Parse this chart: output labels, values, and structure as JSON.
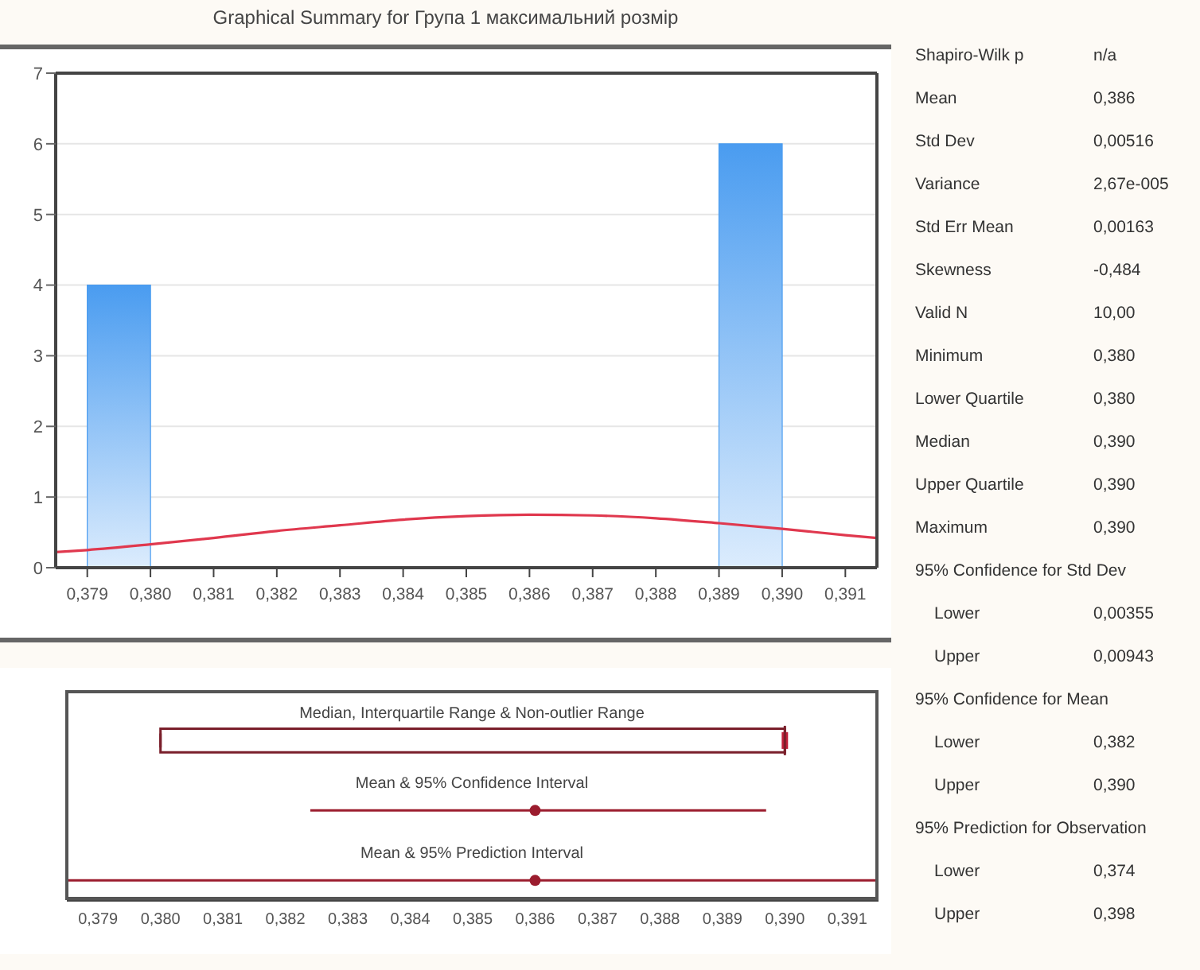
{
  "chart_data": [
    {
      "type": "histogram",
      "title": "Graphical Summary for Група 1 максимальний розмір",
      "xlim": [
        0.3785,
        0.3915
      ],
      "xticks": [
        {
          "value": 0.379,
          "label": "0,379"
        },
        {
          "value": 0.38,
          "label": "0,380"
        },
        {
          "value": 0.381,
          "label": "0,381"
        },
        {
          "value": 0.382,
          "label": "0,382"
        },
        {
          "value": 0.383,
          "label": "0,383"
        },
        {
          "value": 0.384,
          "label": "0,384"
        },
        {
          "value": 0.385,
          "label": "0,385"
        },
        {
          "value": 0.386,
          "label": "0,386"
        },
        {
          "value": 0.387,
          "label": "0,387"
        },
        {
          "value": 0.388,
          "label": "0,388"
        },
        {
          "value": 0.389,
          "label": "0,389"
        },
        {
          "value": 0.39,
          "label": "0,390"
        },
        {
          "value": 0.391,
          "label": "0,391"
        }
      ],
      "ylim": [
        0,
        7
      ],
      "yticks": [
        0,
        1,
        2,
        3,
        4,
        5,
        6,
        7
      ],
      "grid": "y",
      "series": [
        {
          "type": "histogram",
          "color": "#4a9cf0",
          "bins": [
            0.379,
            0.38,
            0.381,
            0.382,
            0.383,
            0.384,
            0.385,
            0.386,
            0.387,
            0.388,
            0.389,
            0.39
          ],
          "values": [
            4,
            0,
            0,
            0,
            0,
            0,
            0,
            0,
            0,
            0,
            6
          ]
        },
        {
          "type": "line",
          "color": "#e0384e",
          "x": [
            0.3785,
            0.379,
            0.38,
            0.381,
            0.382,
            0.383,
            0.384,
            0.385,
            0.386,
            0.387,
            0.388,
            0.389,
            0.39,
            0.391,
            0.3915
          ],
          "values": [
            0.22,
            0.25,
            0.33,
            0.42,
            0.52,
            0.6,
            0.68,
            0.73,
            0.75,
            0.74,
            0.7,
            0.63,
            0.55,
            0.46,
            0.42
          ]
        }
      ]
    },
    {
      "type": "box",
      "orientation": "horizontal",
      "categories": [
        "Median, Interquartile Range & Non-outlier Range",
        "Mean & 95% Confidence Interval",
        "Mean & 95% Prediction Interval"
      ],
      "xlim": [
        0.3785,
        0.3915
      ],
      "xticks": [
        {
          "value": 0.379,
          "label": "0,379"
        },
        {
          "value": 0.38,
          "label": "0,380"
        },
        {
          "value": 0.381,
          "label": "0,381"
        },
        {
          "value": 0.382,
          "label": "0,382"
        },
        {
          "value": 0.383,
          "label": "0,383"
        },
        {
          "value": 0.384,
          "label": "0,384"
        },
        {
          "value": 0.385,
          "label": "0,385"
        },
        {
          "value": 0.386,
          "label": "0,386"
        },
        {
          "value": 0.387,
          "label": "0,387"
        },
        {
          "value": 0.388,
          "label": "0,388"
        },
        {
          "value": 0.389,
          "label": "0,389"
        },
        {
          "value": 0.39,
          "label": "0,390"
        },
        {
          "value": 0.391,
          "label": "0,391"
        }
      ],
      "series": [
        {
          "type": "box",
          "color": "#7a1f2b",
          "boxes": [
            {
              "low": 0.38,
              "q1": 0.38,
              "median": 0.39,
              "q3": 0.39,
              "high": 0.39
            },
            null,
            null
          ]
        },
        {
          "type": "scatter",
          "color": "#9b1c2e",
          "values": [
            null,
            0.386,
            0.386
          ],
          "errors": [
            null,
            [
              0.3824,
              0.3897
            ],
            [
              0.3785,
              0.3915
            ]
          ]
        }
      ]
    },
    {
      "type": "other",
      "categories": [
        "Shapiro-Wilk p",
        "Mean",
        "Std Dev",
        "Variance",
        "Std Err Mean",
        "Skewness",
        "Valid N",
        "Minimum",
        "Lower Quartile",
        "Median",
        "Upper Quartile",
        "Maximum",
        "95% Confidence for Std Dev",
        "Lower",
        "Upper",
        "95% Confidence for Mean",
        "Lower",
        "Upper",
        "95% Prediction for Observation",
        "Lower",
        "Upper"
      ],
      "value_labels": [
        "n/a",
        "0,386",
        "0,00516",
        "2,67e-005",
        "0,00163",
        "-0,484",
        "10,00",
        "0,380",
        "0,380",
        "0,390",
        "0,390",
        "0,390",
        null,
        "0,00355",
        "0,00943",
        null,
        "0,382",
        "0,390",
        null,
        "0,374",
        "0,398"
      ]
    }
  ]
}
